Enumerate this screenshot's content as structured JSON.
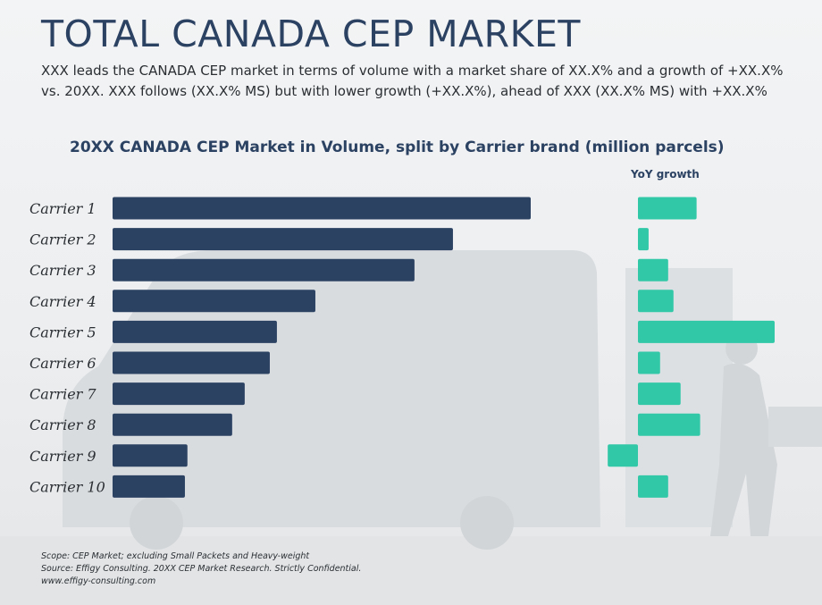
{
  "page": {
    "title": "TOTAL CANADA CEP MARKET",
    "description": "XXX leads the CANADA CEP market in terms of volume with a market share of XX.X% and a growth of +XX.X% vs. 20XX. XXX follows (XX.X% MS) but with lower growth (+XX.X%), ahead of XXX (XX.X% MS) with +XX.X%",
    "footer": {
      "scope": "Scope: CEP Market; excluding Small Packets and Heavy-weight",
      "source": "Source: Effigy Consulting. 20XX CEP Market Research. Strictly Confidential.",
      "website": "www.effigy-consulting.com"
    }
  },
  "chart_data": [
    {
      "type": "bar",
      "orientation": "horizontal",
      "title": "20XX CANADA CEP Market in Volume, split by Carrier brand (million parcels)",
      "categories": [
        "Carrier 1",
        "Carrier 2",
        "Carrier 3",
        "Carrier 4",
        "Carrier 5",
        "Carrier 6",
        "Carrier 7",
        "Carrier 8",
        "Carrier 9",
        "Carrier 10"
      ],
      "values": [
        100,
        81.4,
        72.2,
        48.5,
        39.3,
        37.6,
        31.6,
        28.6,
        17.9,
        17.3
      ],
      "value_scale": "relative (no axis or data labels shown; Carrier 1 = 100)",
      "color": "#2c4263"
    },
    {
      "type": "bar",
      "orientation": "horizontal",
      "title": "YoY growth",
      "categories": [
        "Carrier 1",
        "Carrier 2",
        "Carrier 3",
        "Carrier 4",
        "Carrier 5",
        "Carrier 6",
        "Carrier 7",
        "Carrier 8",
        "Carrier 9",
        "Carrier 10"
      ],
      "values": [
        42.9,
        7.8,
        22.1,
        26.0,
        100,
        16.2,
        31.2,
        45.5,
        -22.1,
        22.1
      ],
      "value_scale": "relative (no axis or data labels shown; Carrier 5 = 100)",
      "color": "#31c8a8"
    }
  ]
}
